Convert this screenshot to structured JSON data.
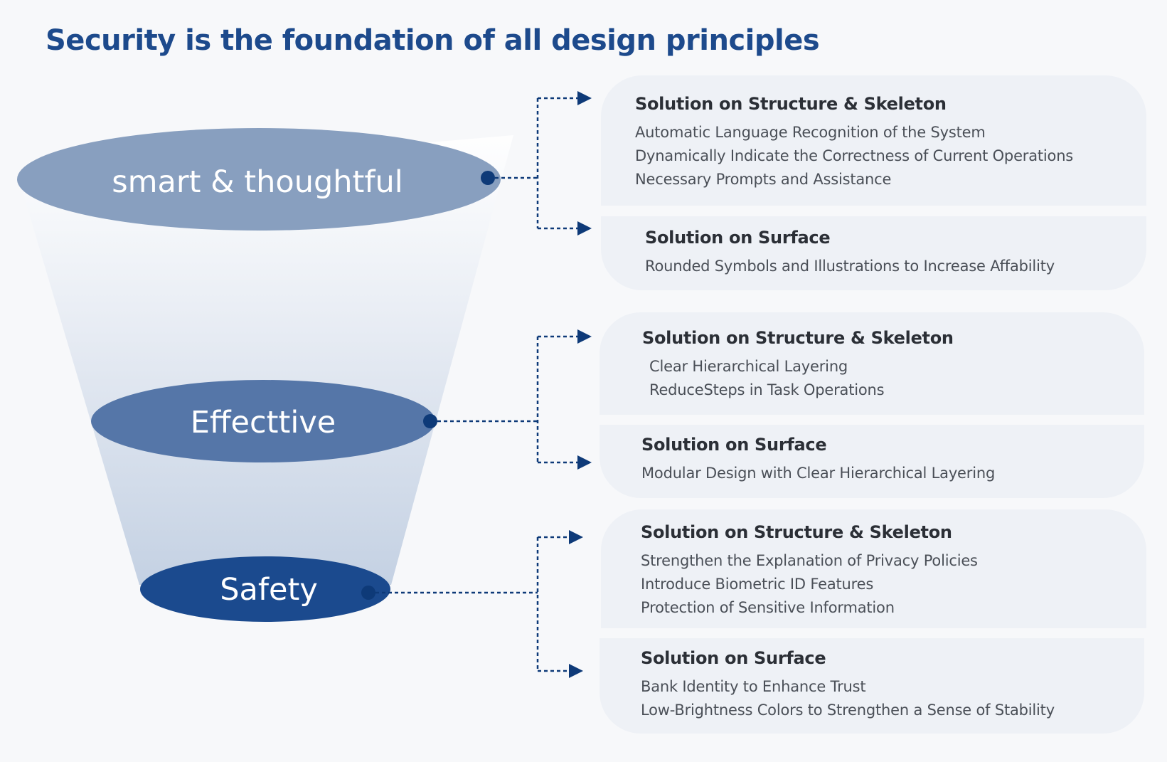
{
  "title": "Security is the foundation of all design principles",
  "levels": [
    {
      "label": "smart & thoughtful",
      "color": "#889fbf"
    },
    {
      "label": "Effecttive",
      "color": "#5576a8"
    },
    {
      "label": "Safety",
      "color": "#1b4a8e"
    }
  ],
  "colors": {
    "title": "#1d4a8c",
    "connector": "#0e3a78",
    "card_bg": "#eef1f6"
  },
  "groups": [
    {
      "structure": {
        "title": "Solution on Structure & Skeleton",
        "lines": [
          "Automatic Language Recognition of the System",
          "Dynamically Indicate the Correctness of Current Operations",
          "Necessary Prompts and Assistance"
        ]
      },
      "surface": {
        "title": "Solution on Surface",
        "lines": [
          "Rounded Symbols and Illustrations to Increase Affability"
        ]
      }
    },
    {
      "structure": {
        "title": "Solution on Structure & Skeleton",
        "lines": [
          "Clear Hierarchical Layering",
          "ReduceSteps in Task Operations"
        ]
      },
      "surface": {
        "title": "Solution on Surface",
        "lines": [
          "Modular Design with Clear Hierarchical Layering"
        ]
      }
    },
    {
      "structure": {
        "title": "Solution on Structure & Skeleton",
        "lines": [
          "Strengthen the Explanation of Privacy Policies",
          "Introduce Biometric ID Features",
          "Protection of Sensitive Information"
        ]
      },
      "surface": {
        "title": "Solution on Surface",
        "lines": [
          "Bank Identity to Enhance Trust",
          "Low-Brightness Colors to Strengthen a Sense of Stability"
        ]
      }
    }
  ]
}
